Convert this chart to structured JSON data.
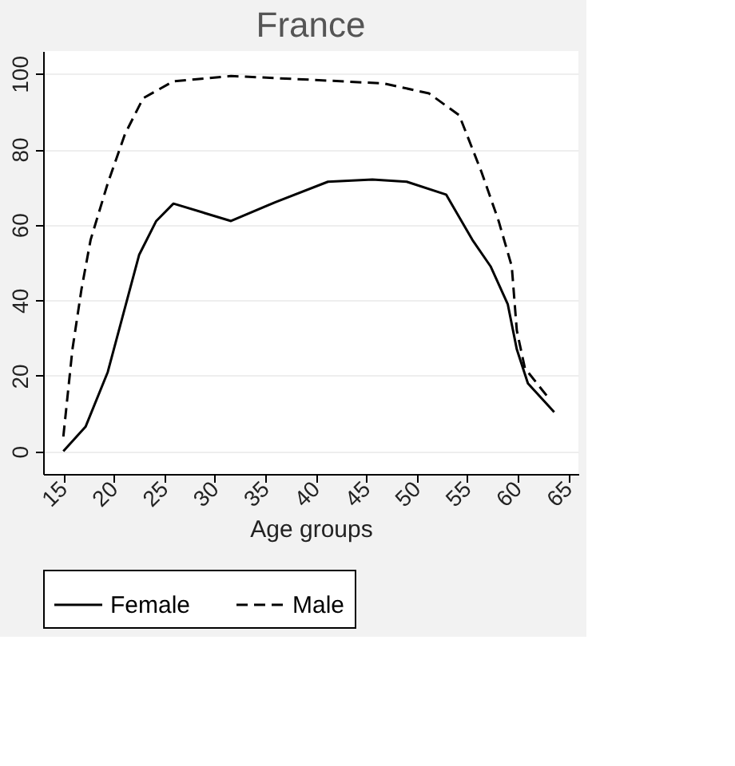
{
  "chart_data": {
    "type": "line",
    "title": "France",
    "xlabel": "Age groups",
    "xlim": [
      13,
      66
    ],
    "xticks": [
      15,
      20,
      25,
      30,
      35,
      40,
      45,
      50,
      55,
      60,
      65
    ],
    "ylim": [
      -6,
      106
    ],
    "yticks": [
      0,
      20,
      40,
      60,
      80,
      100
    ],
    "grid": "y",
    "legend": "bottom",
    "marker": "none",
    "series": [
      {
        "name": "Female",
        "color": "#000000",
        "line_style": "solid",
        "x": [
          15,
          17.2,
          19.4,
          22.5,
          24.2,
          25.9,
          31.6,
          36,
          41.2,
          45.6,
          49,
          52.9,
          55.5,
          57.3,
          59,
          59.9,
          61,
          63.6
        ],
        "values": [
          0,
          6.5,
          21,
          52,
          61,
          65.6,
          61,
          66,
          71.4,
          72,
          71.4,
          68,
          56,
          49,
          39,
          27,
          18,
          10.4
        ]
      },
      {
        "name": "Male",
        "color": "#000000",
        "line_style": "dashed",
        "x": [
          15,
          15.9,
          16.8,
          17.7,
          19.4,
          21.1,
          22.9,
          25.9,
          31.6,
          40.3,
          46.8,
          51.2,
          54.2,
          56.4,
          58.1,
          59.4,
          59.9,
          60.7,
          63.2
        ],
        "values": [
          3.9,
          27,
          43,
          56,
          71,
          84,
          93.5,
          98,
          99.4,
          98.3,
          97.4,
          94.8,
          89,
          74,
          61,
          49,
          32,
          22,
          13.6
        ]
      }
    ]
  }
}
